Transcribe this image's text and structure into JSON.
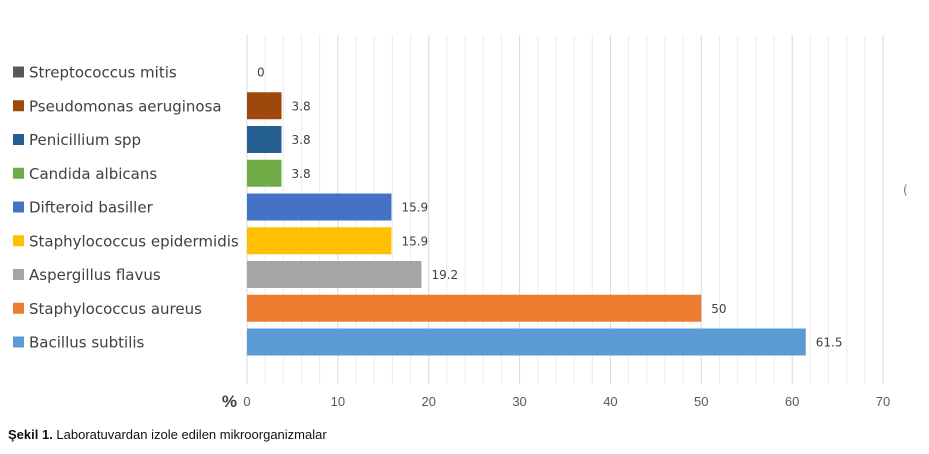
{
  "chart_data": {
    "type": "bar",
    "orientation": "horizontal",
    "categories": [
      "Streptococcus mitis",
      "Pseudomonas aeruginosa",
      "Penicillium spp",
      "Candida albicans",
      "Difteroid basiller",
      "Staphylococcus epidermidis",
      "Aspergillus flavus",
      "Staphylococcus aureus",
      "Bacillus subtilis"
    ],
    "values": [
      0,
      3.8,
      3.8,
      3.8,
      15.9,
      15.9,
      19.2,
      50,
      61.5
    ],
    "value_labels": [
      "0",
      "3.8",
      "3.8",
      "3.8",
      "15.9",
      "15.9",
      "19.2",
      "50",
      "61.5"
    ],
    "colors": [
      "#595959",
      "#9e480e",
      "#255e91",
      "#70ad47",
      "#4472c4",
      "#ffc000",
      "#a5a5a5",
      "#ed7d31",
      "#5b9bd5"
    ],
    "xlim": [
      0,
      70
    ],
    "xticks": [
      "0",
      "10",
      "20",
      "30",
      "40",
      "50",
      "60",
      "70"
    ],
    "xlabel": "%",
    "grid": true,
    "legend": "left"
  },
  "caption": {
    "label": "Şekil 1.",
    "text": " Laboratuvardan izole edilen mikroorganizmalar"
  },
  "cut_mark": "("
}
